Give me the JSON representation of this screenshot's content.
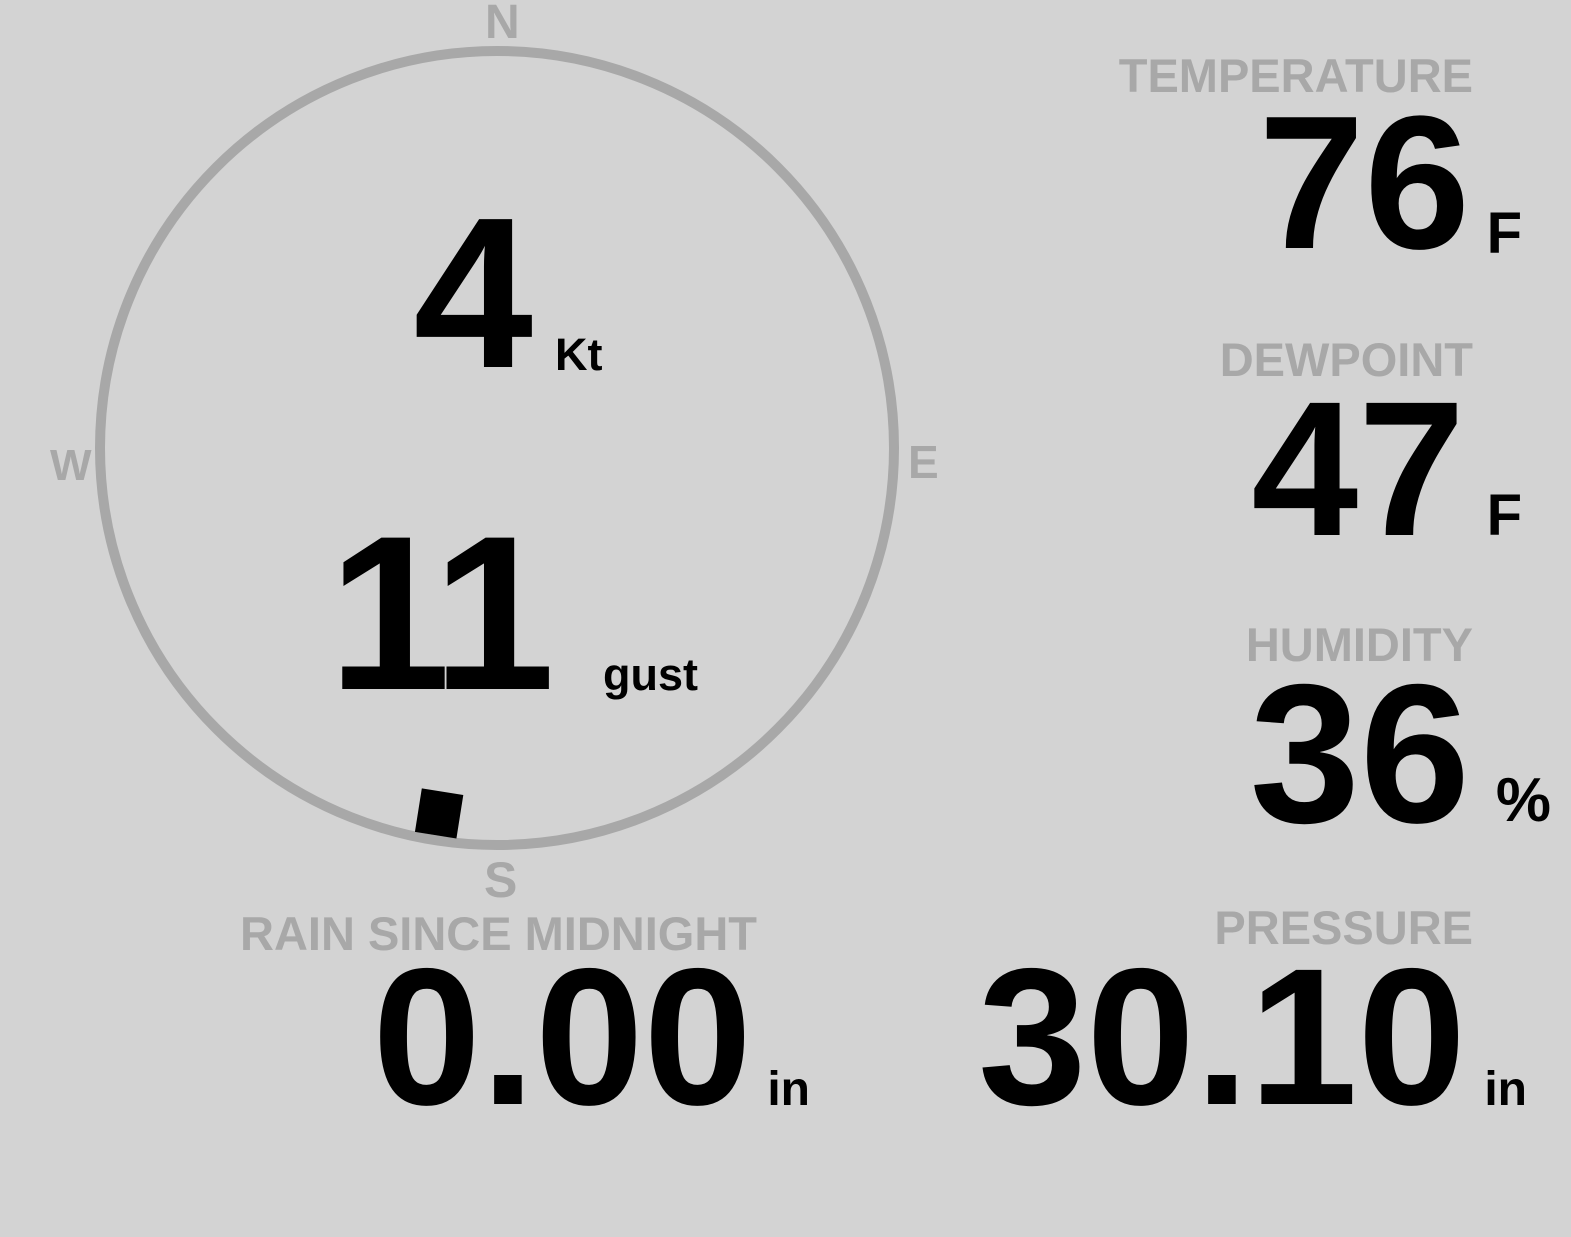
{
  "colors": {
    "background": "#d3d3d3",
    "label": "#a8a8a8",
    "value": "#000000",
    "compass": "#a8a8a8"
  },
  "wind": {
    "compass": {
      "n": "N",
      "e": "E",
      "s": "S",
      "w": "W"
    },
    "speed": "4",
    "speed_unit": "Kt",
    "gust": "11",
    "gust_unit": "gust",
    "direction_degrees": 189
  },
  "temperature": {
    "label": "TEMPERATURE",
    "value": "76",
    "unit": "F"
  },
  "dewpoint": {
    "label": "DEWPOINT",
    "value": "47",
    "unit": "F"
  },
  "humidity": {
    "label": "HUMIDITY",
    "value": "36",
    "unit": "%"
  },
  "rain": {
    "label": "RAIN SINCE MIDNIGHT",
    "value": "0.00",
    "unit": "in"
  },
  "pressure": {
    "label": "PRESSURE",
    "value": "30.10",
    "unit": "in"
  }
}
